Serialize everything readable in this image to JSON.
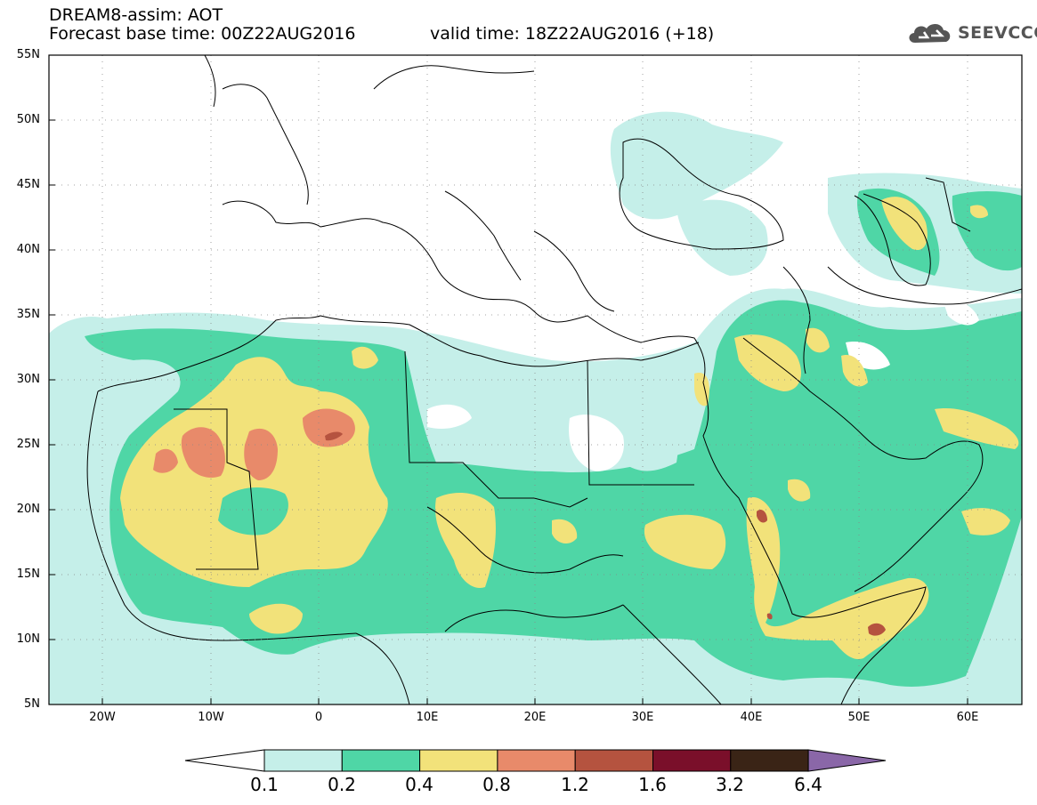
{
  "header": {
    "line1": "DREAM8-assim: AOT",
    "line2": "Forecast base time: 00Z22AUG2016",
    "valid": "valid time: 18Z22AUG2016 (+18)"
  },
  "logo": {
    "text": "SEEVCCC",
    "icon": "cloud-icon"
  },
  "lat_labels": [
    "55N",
    "50N",
    "45N",
    "40N",
    "35N",
    "30N",
    "25N",
    "20N",
    "15N",
    "10N",
    "5N"
  ],
  "lon_labels": [
    "20W",
    "10W",
    "0",
    "10E",
    "20E",
    "30E",
    "40E",
    "50E",
    "60E"
  ],
  "colorbar": {
    "labels": [
      "0.1",
      "0.2",
      "0.4",
      "0.8",
      "1.2",
      "1.6",
      "3.2",
      "6.4"
    ],
    "colors": [
      "#ffffff",
      "#c5efe9",
      "#4fd6a6",
      "#f2e27a",
      "#e88a6a",
      "#b5533f",
      "#7a0f2a",
      "#3a2416",
      "#8a67a8"
    ]
  },
  "colors": {
    "c1": "#c5efe9",
    "c2": "#4fd6a6",
    "c3": "#f2e27a",
    "c4": "#e88a6a",
    "c5": "#b5533f"
  }
}
